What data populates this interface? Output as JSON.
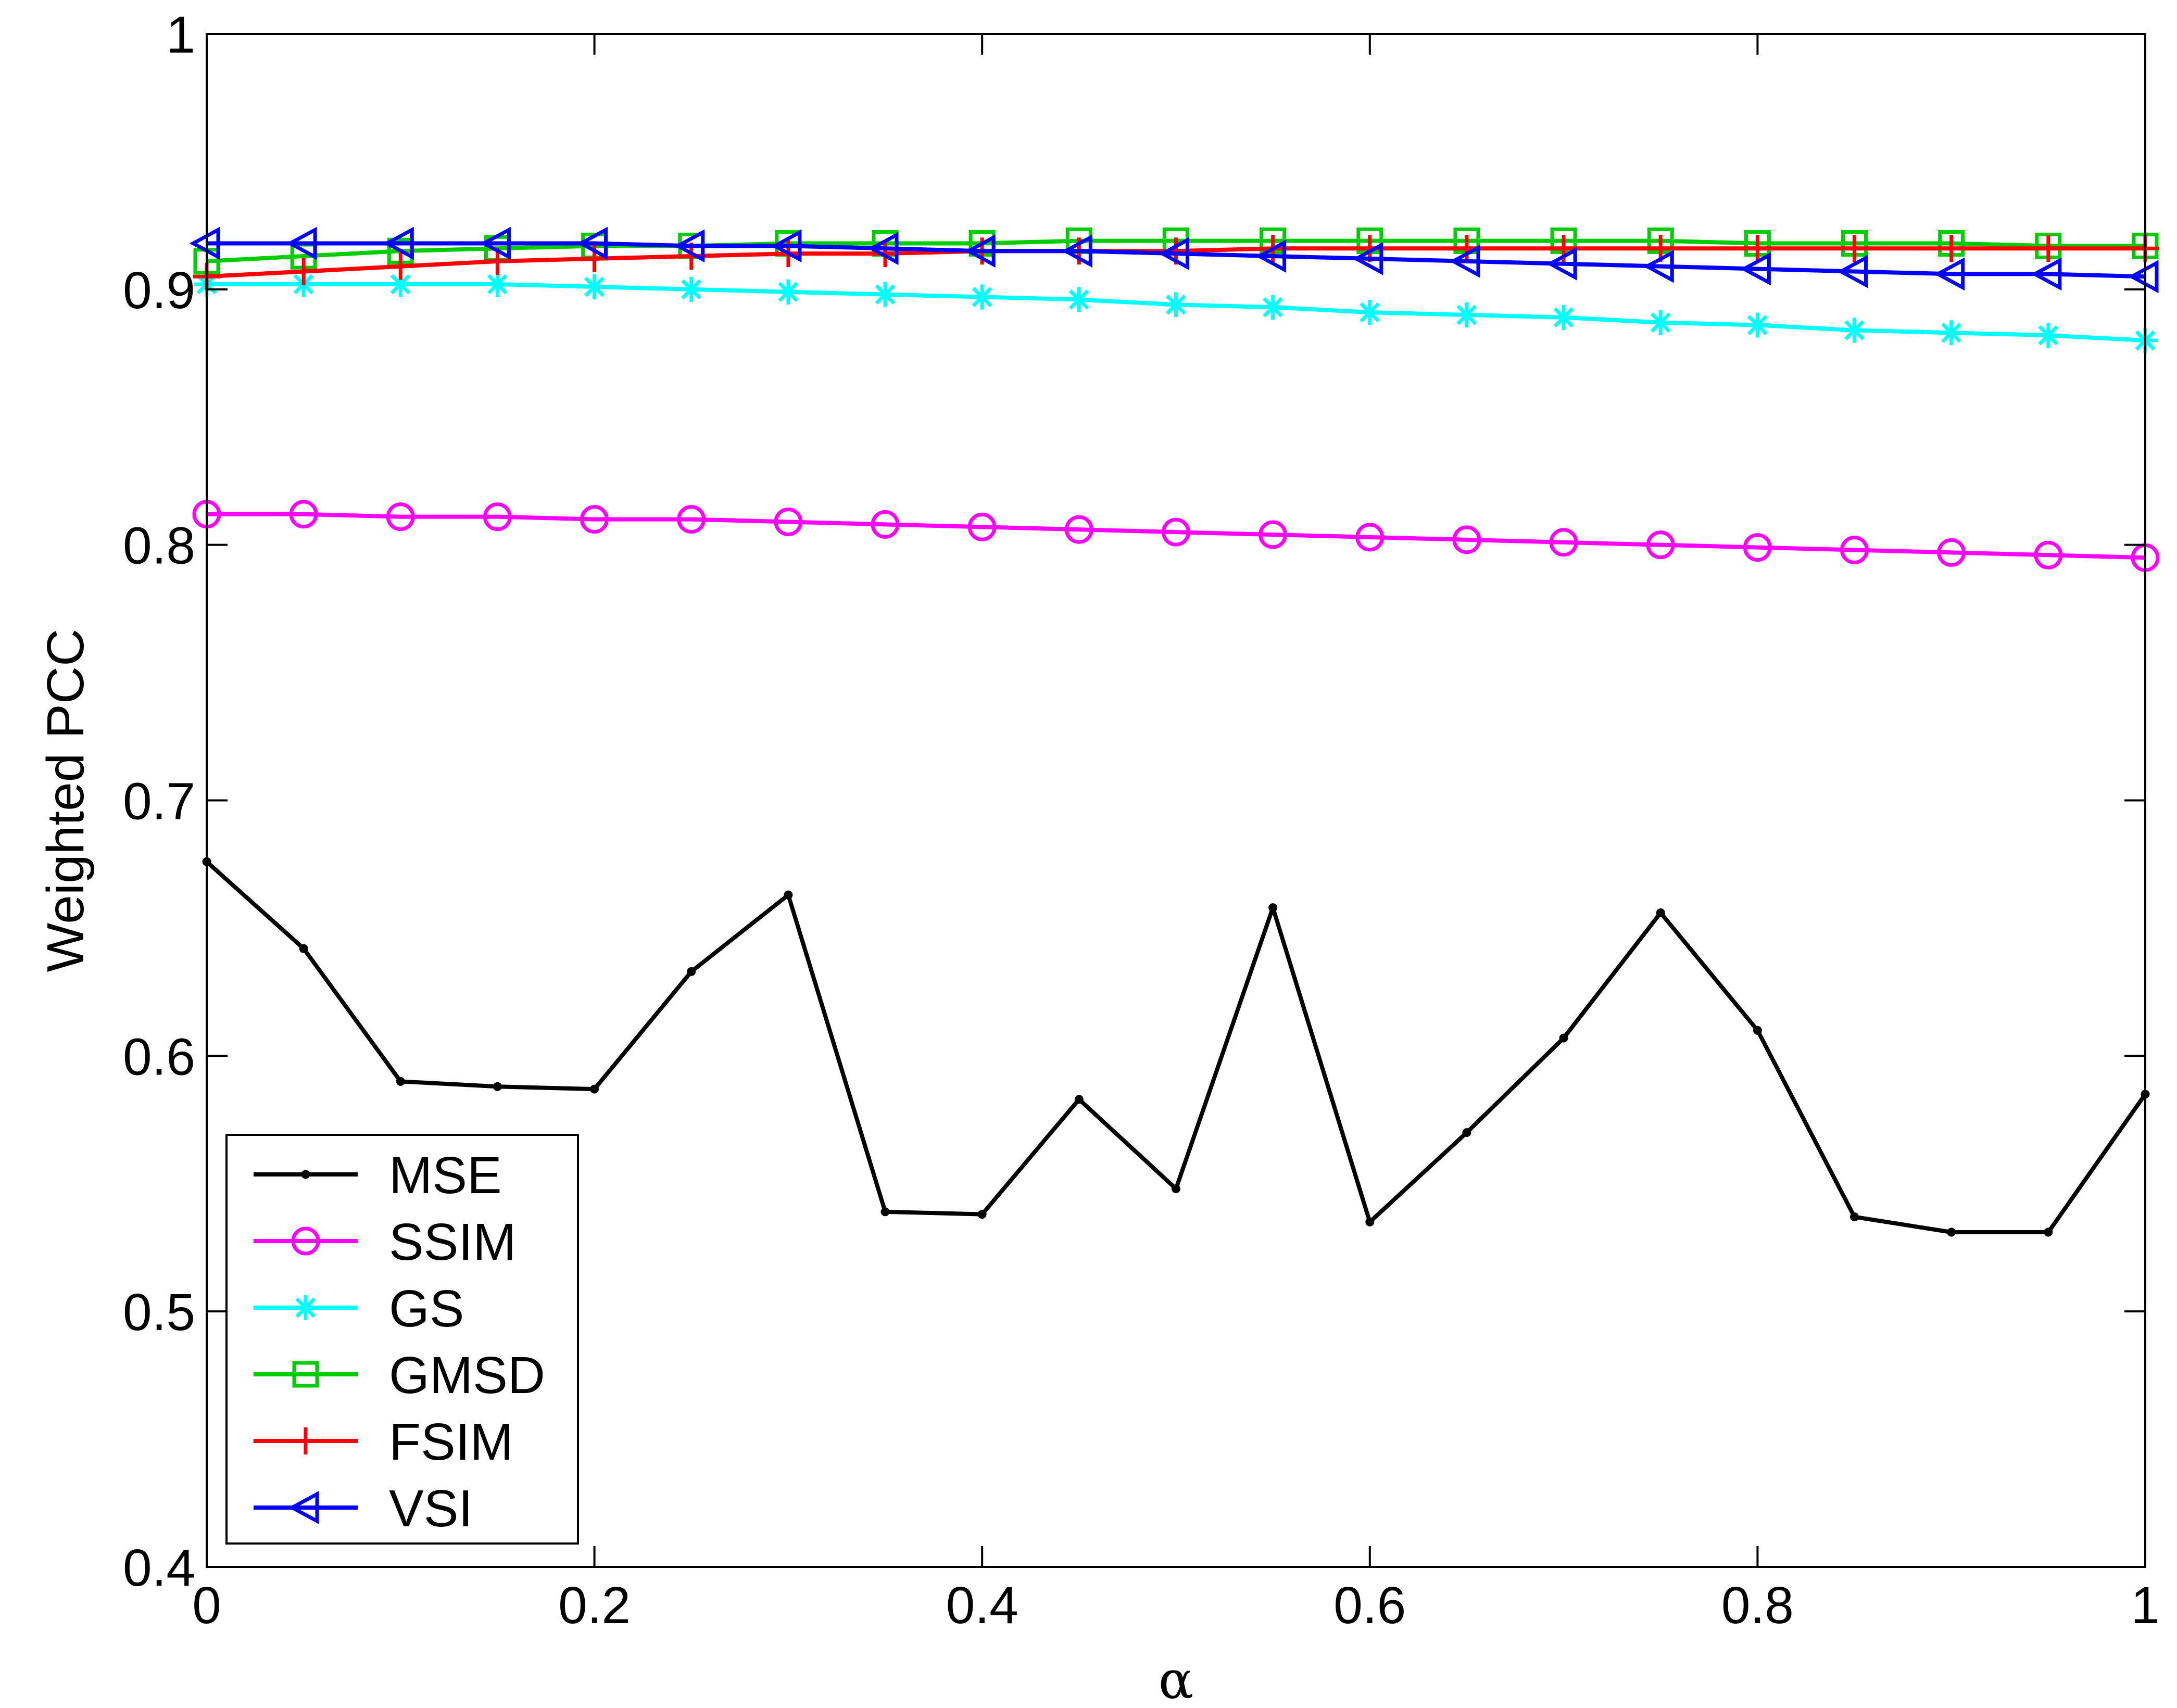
{
  "chart_data": {
    "type": "line",
    "title": "",
    "xlabel": "α",
    "ylabel": "Weighted PCC",
    "xlim": [
      0,
      1
    ],
    "ylim": [
      0.4,
      1
    ],
    "xticks": [
      0,
      0.2,
      0.4,
      0.6,
      0.8,
      1
    ],
    "xtick_labels": [
      "0",
      "0.2",
      "0.4",
      "0.6",
      "0.8",
      "1"
    ],
    "yticks": [
      0.4,
      0.5,
      0.6,
      0.7,
      0.8,
      0.9,
      1
    ],
    "ytick_labels": [
      "0.4",
      "0.5",
      "0.6",
      "0.7",
      "0.8",
      "0.9",
      "1"
    ],
    "grid": false,
    "legend_position": "bottom-left",
    "x": [
      0,
      0.05,
      0.1,
      0.15,
      0.2,
      0.25,
      0.3,
      0.35,
      0.4,
      0.45,
      0.5,
      0.55,
      0.6,
      0.65,
      0.7,
      0.75,
      0.8,
      0.85,
      0.9,
      0.95,
      1
    ],
    "series": [
      {
        "name": "MSE",
        "color": "#000000",
        "marker": "dot",
        "values": [
          0.676,
          0.642,
          0.59,
          0.588,
          0.587,
          0.633,
          0.663,
          0.539,
          0.538,
          0.583,
          0.548,
          0.658,
          0.535,
          0.57,
          0.607,
          0.656,
          0.61,
          0.537,
          0.531,
          0.531,
          0.585
        ]
      },
      {
        "name": "SSIM",
        "color": "#ff00ff",
        "marker": "circle",
        "values": [
          0.812,
          0.812,
          0.811,
          0.811,
          0.81,
          0.81,
          0.809,
          0.808,
          0.807,
          0.806,
          0.805,
          0.804,
          0.803,
          0.802,
          0.801,
          0.8,
          0.799,
          0.798,
          0.797,
          0.796,
          0.795
        ]
      },
      {
        "name": "GS",
        "color": "#00ffff",
        "marker": "star",
        "values": [
          0.902,
          0.902,
          0.902,
          0.902,
          0.901,
          0.9,
          0.899,
          0.898,
          0.897,
          0.896,
          0.894,
          0.893,
          0.891,
          0.89,
          0.889,
          0.887,
          0.886,
          0.884,
          0.883,
          0.882,
          0.88
        ]
      },
      {
        "name": "GMSD",
        "color": "#00cc00",
        "marker": "square",
        "values": [
          0.911,
          0.913,
          0.915,
          0.916,
          0.917,
          0.917,
          0.918,
          0.918,
          0.918,
          0.919,
          0.919,
          0.919,
          0.919,
          0.919,
          0.919,
          0.919,
          0.918,
          0.918,
          0.918,
          0.917,
          0.917
        ]
      },
      {
        "name": "FSIM",
        "color": "#ff0000",
        "marker": "plus",
        "values": [
          0.905,
          0.907,
          0.909,
          0.911,
          0.912,
          0.913,
          0.914,
          0.914,
          0.915,
          0.915,
          0.915,
          0.916,
          0.916,
          0.916,
          0.916,
          0.916,
          0.916,
          0.916,
          0.916,
          0.916,
          0.916
        ]
      },
      {
        "name": "VSI",
        "color": "#0000ff",
        "marker": "triangle-left",
        "values": [
          0.918,
          0.918,
          0.918,
          0.918,
          0.918,
          0.917,
          0.917,
          0.916,
          0.915,
          0.915,
          0.914,
          0.913,
          0.912,
          0.911,
          0.91,
          0.909,
          0.908,
          0.907,
          0.906,
          0.906,
          0.905
        ]
      }
    ]
  }
}
